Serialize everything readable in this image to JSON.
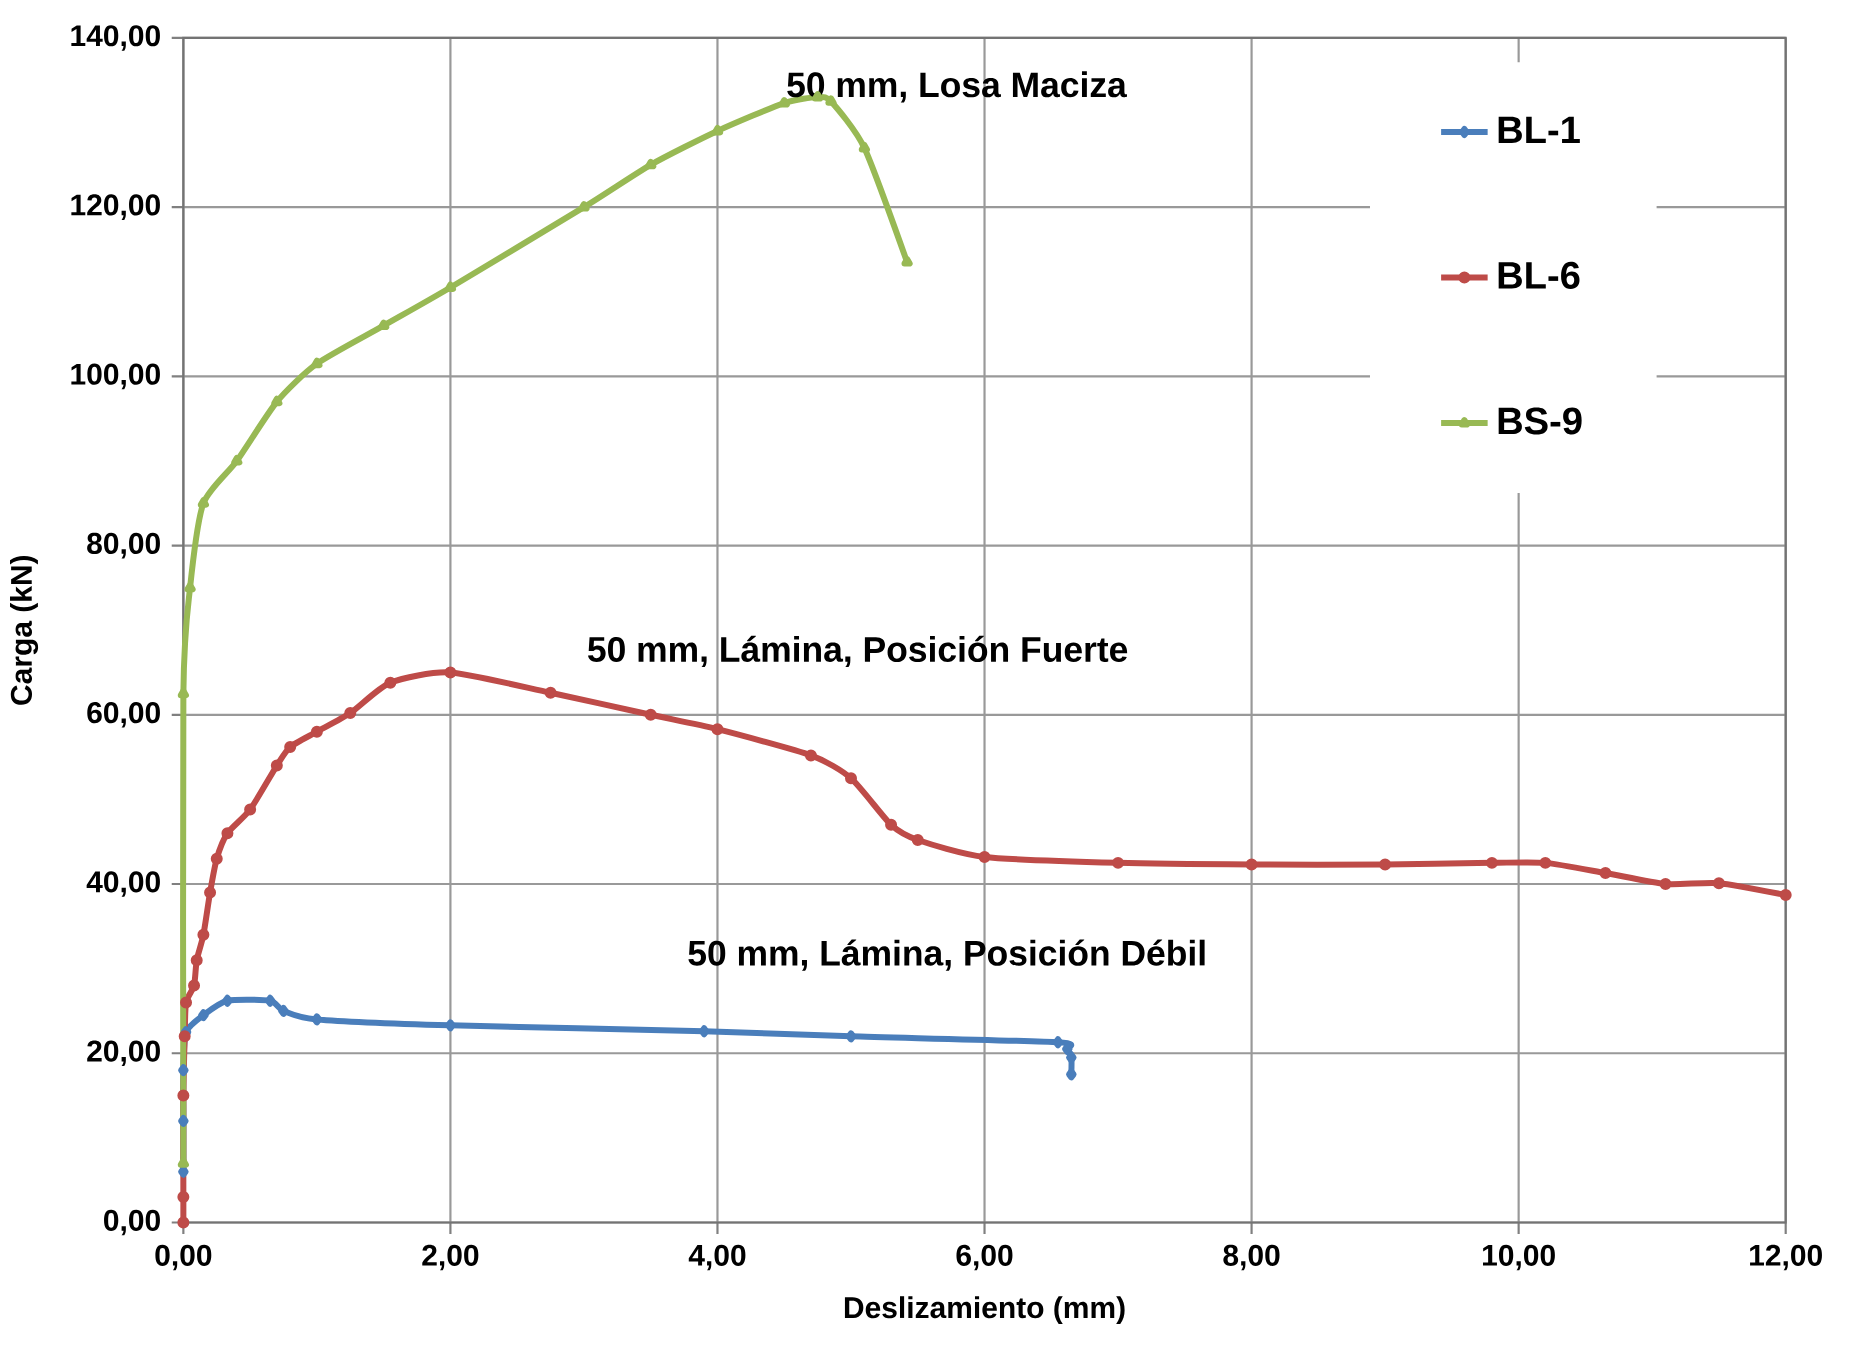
{
  "chart_data": {
    "type": "line",
    "xlabel": "Deslizamiento (mm)",
    "ylabel": "Carga (kN)",
    "xlim": [
      0,
      12
    ],
    "ylim": [
      0,
      140
    ],
    "xticks": [
      {
        "value": 0,
        "label": "0,00"
      },
      {
        "value": 2,
        "label": "2,00"
      },
      {
        "value": 4,
        "label": "4,00"
      },
      {
        "value": 6,
        "label": "6,00"
      },
      {
        "value": 8,
        "label": "8,00"
      },
      {
        "value": 10,
        "label": "10,00"
      },
      {
        "value": 12,
        "label": "12,00"
      }
    ],
    "yticks": [
      {
        "value": 0,
        "label": "0,00"
      },
      {
        "value": 20,
        "label": "20,00"
      },
      {
        "value": 40,
        "label": "40,00"
      },
      {
        "value": 60,
        "label": "60,00"
      },
      {
        "value": 80,
        "label": "80,00"
      },
      {
        "value": 100,
        "label": "100,00"
      },
      {
        "value": 120,
        "label": "120,00"
      },
      {
        "value": 140,
        "label": "140,00"
      }
    ],
    "grid": true,
    "legend": "top right",
    "series": [
      {
        "name": "BL-1",
        "color": "#4a7ebb",
        "marker": "diamond",
        "x": [
          0,
          0,
          0,
          0.02,
          0.15,
          0.33,
          0.65,
          0.75,
          1.0,
          2.0,
          3.9,
          5.0,
          6.55,
          6.62,
          6.65,
          6.65
        ],
        "values": [
          6,
          12,
          18,
          22.5,
          24.5,
          26.2,
          26.2,
          25,
          24,
          23.3,
          22.6,
          22,
          21.3,
          20.5,
          19.5,
          17.5
        ]
      },
      {
        "name": "BL-6",
        "color": "#be4b48",
        "marker": "circle",
        "x": [
          0,
          0,
          0,
          0.01,
          0.02,
          0.08,
          0.1,
          0.15,
          0.2,
          0.25,
          0.33,
          0.5,
          0.7,
          0.8,
          1.0,
          1.25,
          1.55,
          2.0,
          2.75,
          3.5,
          4.0,
          4.7,
          5.0,
          5.3,
          5.5,
          6.0,
          7.0,
          8.0,
          9.0,
          9.8,
          10.2,
          10.65,
          11.1,
          11.5,
          12.0
        ],
        "values": [
          0,
          3,
          15,
          22,
          26,
          28,
          31,
          34,
          39,
          43,
          46,
          48.8,
          54,
          56.2,
          58,
          60.2,
          63.8,
          65,
          62.6,
          60,
          58.3,
          55.2,
          52.5,
          47,
          45.2,
          43.2,
          42.5,
          42.3,
          42.3,
          42.5,
          42.5,
          41.3,
          40,
          40.1,
          38.7
        ]
      },
      {
        "name": "BS-9",
        "color": "#98b954",
        "marker": "triangle",
        "x": [
          0,
          0,
          0.05,
          0.15,
          0.4,
          0.7,
          1.0,
          1.5,
          2.0,
          3.0,
          3.5,
          4.0,
          4.5,
          4.75,
          4.85,
          5.1,
          5.42
        ],
        "values": [
          7,
          62.5,
          75,
          85,
          90,
          97,
          101.5,
          106,
          110.5,
          120,
          125,
          129,
          132.3,
          133,
          132.5,
          127,
          113.5
        ]
      }
    ],
    "annotations": [
      "50 mm,  Losa Maciza",
      "50 mm,  Lámina, Posición Fuerte",
      "50 mm,  Lámina, Posición Débil"
    ]
  }
}
